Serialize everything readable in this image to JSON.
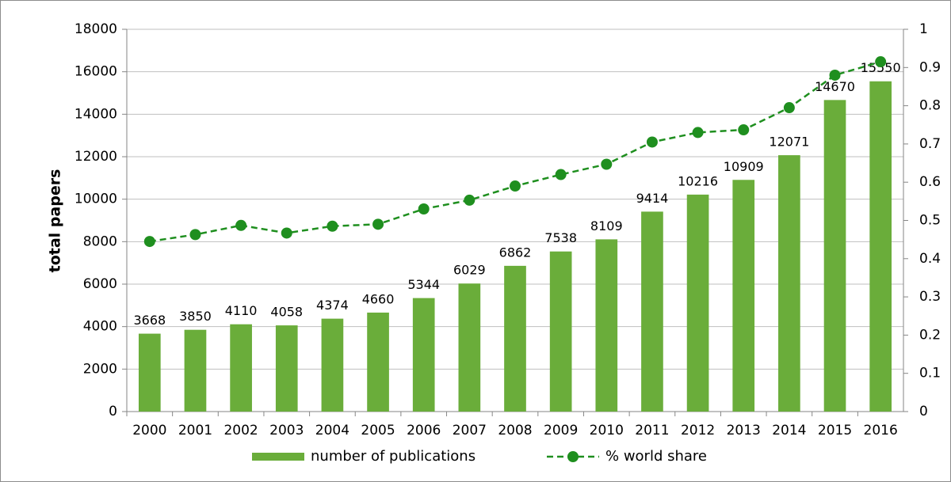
{
  "chart_data": {
    "type": "combo",
    "ylabel": "total papers",
    "categories": [
      "2000",
      "2001",
      "2002",
      "2003",
      "2004",
      "2005",
      "2006",
      "2007",
      "2008",
      "2009",
      "2010",
      "2011",
      "2012",
      "2013",
      "2014",
      "2015",
      "2016"
    ],
    "series": [
      {
        "name": "number of publications",
        "type": "bar",
        "color": "#6aad3a",
        "values": [
          3668,
          3850,
          4110,
          4058,
          4374,
          4660,
          5344,
          6029,
          6862,
          7538,
          8109,
          9414,
          10216,
          10909,
          12071,
          14670,
          15550
        ]
      },
      {
        "name": "% world share",
        "type": "line",
        "axis": "y2",
        "color": "#1f8f1f",
        "values": [
          0.445,
          0.463,
          0.487,
          0.467,
          0.485,
          0.49,
          0.53,
          0.553,
          0.59,
          0.62,
          0.647,
          0.705,
          0.73,
          0.737,
          0.795,
          0.88,
          0.915
        ]
      }
    ],
    "ylim": [
      0,
      18000
    ],
    "yticks": [
      0,
      2000,
      4000,
      6000,
      8000,
      10000,
      12000,
      14000,
      16000,
      18000
    ],
    "y2lim": [
      0,
      1
    ],
    "y2ticks": [
      0,
      0.1,
      0.2,
      0.3,
      0.4,
      0.5,
      0.6,
      0.7,
      0.8,
      0.9,
      1
    ],
    "grid": true,
    "legend": "bottom"
  }
}
